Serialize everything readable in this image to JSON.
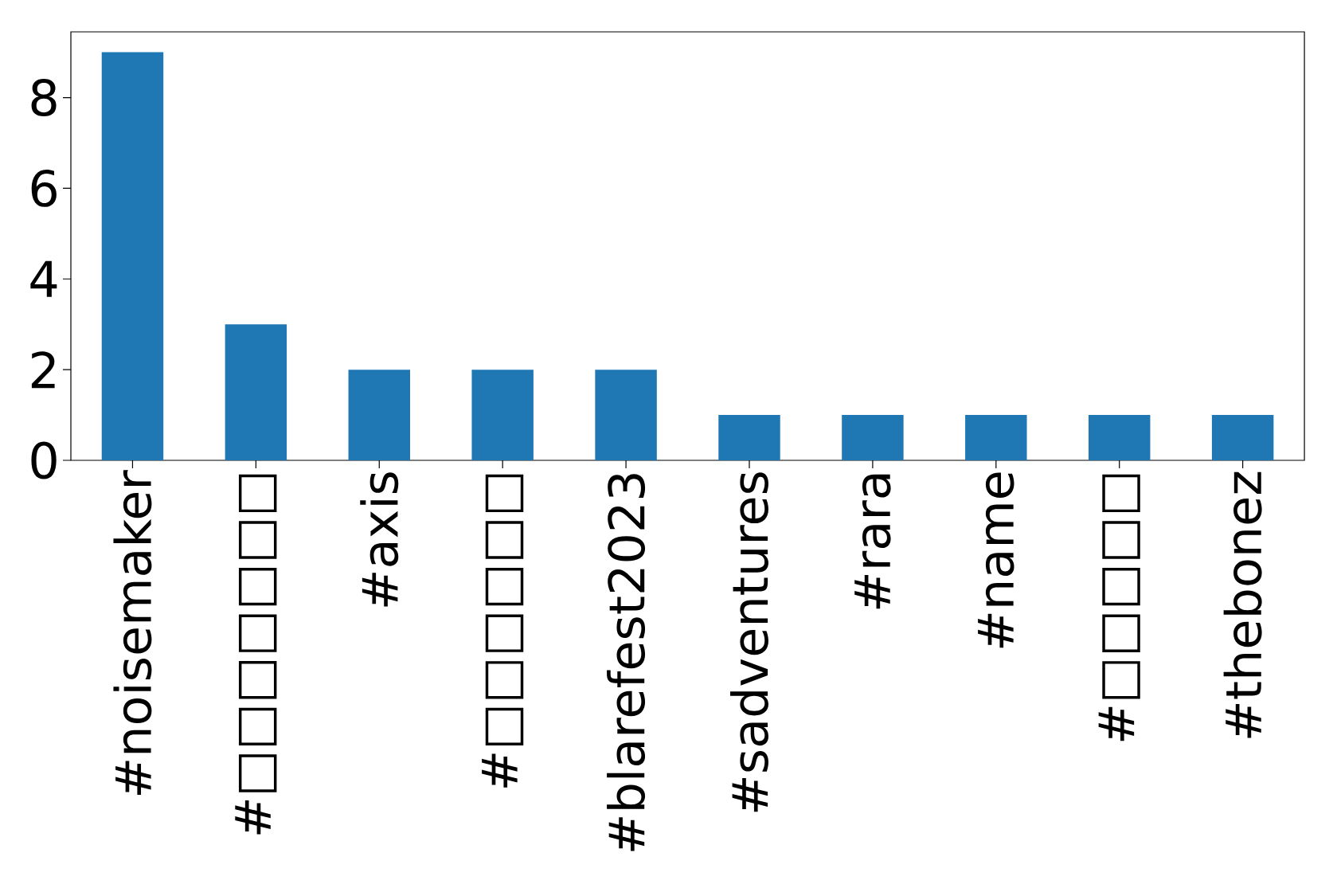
{
  "chart_data": {
    "type": "bar",
    "categories": [
      "#noisemaker",
      "#□□□□□□□",
      "#axis",
      "#□□□□□□",
      "#blarefest2023",
      "#sadventures",
      "#rara",
      "#name",
      "#□□□□□",
      "#thebonez"
    ],
    "values": [
      9,
      3,
      2,
      2,
      2,
      1,
      1,
      1,
      1,
      1
    ],
    "color": "#1f77b4",
    "ylim": [
      0,
      9.45
    ],
    "yticks": [
      0,
      2,
      4,
      6,
      8
    ]
  }
}
